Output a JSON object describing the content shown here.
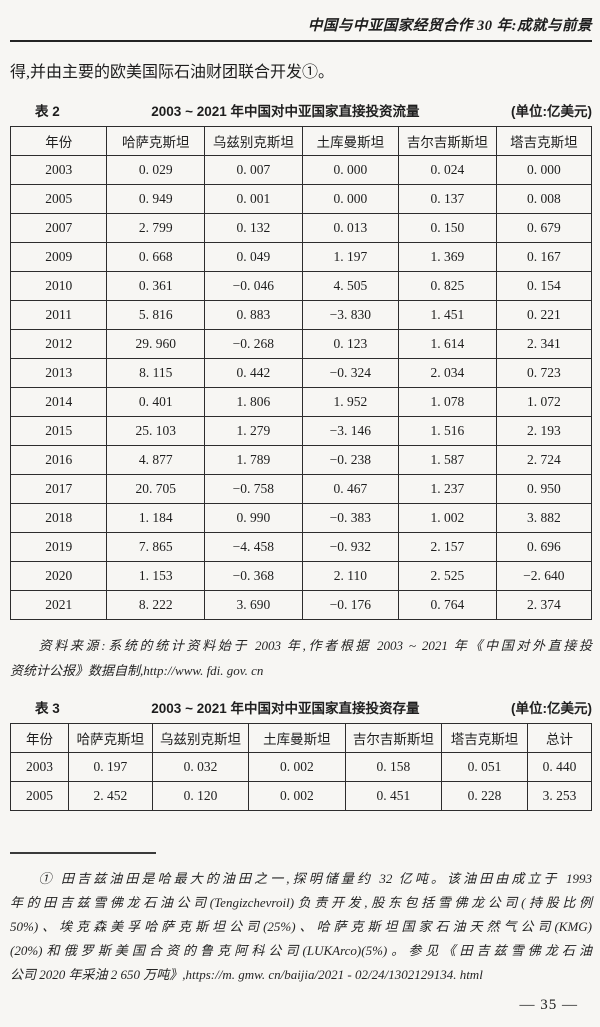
{
  "page": {
    "header_title": "中国与中亚国家经贸合作 30 年:成就与前景",
    "intro_paragraph": "得,并由主要的欧美国际石油财团联合开发①。",
    "page_number": "— 35 —"
  },
  "table2": {
    "label": "表 2",
    "title": "2003 ~ 2021 年中国对中亚国家直接投资流量",
    "unit": "(单位:亿美元)",
    "headers": [
      "年份",
      "哈萨克斯坦",
      "乌兹别克斯坦",
      "土库曼斯坦",
      "吉尔吉斯斯坦",
      "塔吉克斯坦"
    ],
    "rows": [
      [
        "2003",
        "0. 029",
        "0. 007",
        "0. 000",
        "0. 024",
        "0. 000"
      ],
      [
        "2005",
        "0. 949",
        "0. 001",
        "0. 000",
        "0. 137",
        "0. 008"
      ],
      [
        "2007",
        "2. 799",
        "0. 132",
        "0. 013",
        "0. 150",
        "0. 679"
      ],
      [
        "2009",
        "0. 668",
        "0. 049",
        "1. 197",
        "1. 369",
        "0. 167"
      ],
      [
        "2010",
        "0. 361",
        "−0. 046",
        "4. 505",
        "0. 825",
        "0. 154"
      ],
      [
        "2011",
        "5. 816",
        "0. 883",
        "−3. 830",
        "1. 451",
        "0. 221"
      ],
      [
        "2012",
        "29. 960",
        "−0. 268",
        "0. 123",
        "1. 614",
        "2. 341"
      ],
      [
        "2013",
        "8. 115",
        "0. 442",
        "−0. 324",
        "2. 034",
        "0. 723"
      ],
      [
        "2014",
        "0. 401",
        "1. 806",
        "1. 952",
        "1. 078",
        "1. 072"
      ],
      [
        "2015",
        "25. 103",
        "1. 279",
        "−3. 146",
        "1. 516",
        "2. 193"
      ],
      [
        "2016",
        "4. 877",
        "1. 789",
        "−0. 238",
        "1. 587",
        "2. 724"
      ],
      [
        "2017",
        "20. 705",
        "−0. 758",
        "0. 467",
        "1. 237",
        "0. 950"
      ],
      [
        "2018",
        "1. 184",
        "0. 990",
        "−0. 383",
        "1. 002",
        "3. 882"
      ],
      [
        "2019",
        "7. 865",
        "−4. 458",
        "−0. 932",
        "2. 157",
        "0. 696"
      ],
      [
        "2020",
        "1. 153",
        "−0. 368",
        "2. 110",
        "2. 525",
        "−2. 640"
      ],
      [
        "2021",
        "8. 222",
        "3. 690",
        "−0. 176",
        "0. 764",
        "2. 374"
      ]
    ],
    "source_note_lines": [
      "资料来源:系统的统计资料始于 2003 年,作者根据 2003 ~ 2021 年《中国对外直接投",
      "资统计公报》数据自制,http://www. fdi. gov. cn"
    ]
  },
  "table3": {
    "label": "表 3",
    "title": "2003 ~ 2021 年中国对中亚国家直接投资存量",
    "unit": "(单位:亿美元)",
    "headers": [
      "年份",
      "哈萨克斯坦",
      "乌兹别克斯坦",
      "土库曼斯坦",
      "吉尔吉斯斯坦",
      "塔吉克斯坦",
      "总计"
    ],
    "rows": [
      [
        "2003",
        "0. 197",
        "0. 032",
        "0. 002",
        "0. 158",
        "0. 051",
        "0. 440"
      ],
      [
        "2005",
        "2. 452",
        "0. 120",
        "0. 002",
        "0. 451",
        "0. 228",
        "3. 253"
      ]
    ]
  },
  "footnote": {
    "lines": [
      "① 田吉兹油田是哈最大的油田之一,探明储量约 32 亿吨。该油田由成立于 1993",
      "年的田吉兹雪佛龙石油公司(Tengizchevroil)负责开发,股东包括雪佛龙公司(持股比例",
      "50%)、埃克森美孚哈萨克斯坦公司(25%)、哈萨克斯坦国家石油天然气公司(KMG)",
      "(20%)和俄罗斯美国合资的鲁克阿科公司(LUKArco)(5%)。参见《田吉兹雪佛龙石油",
      "公司 2020 年采油 2 650 万吨》,https://m. gmw. cn/baijia/2021 - 02/24/1302129134. html"
    ]
  }
}
